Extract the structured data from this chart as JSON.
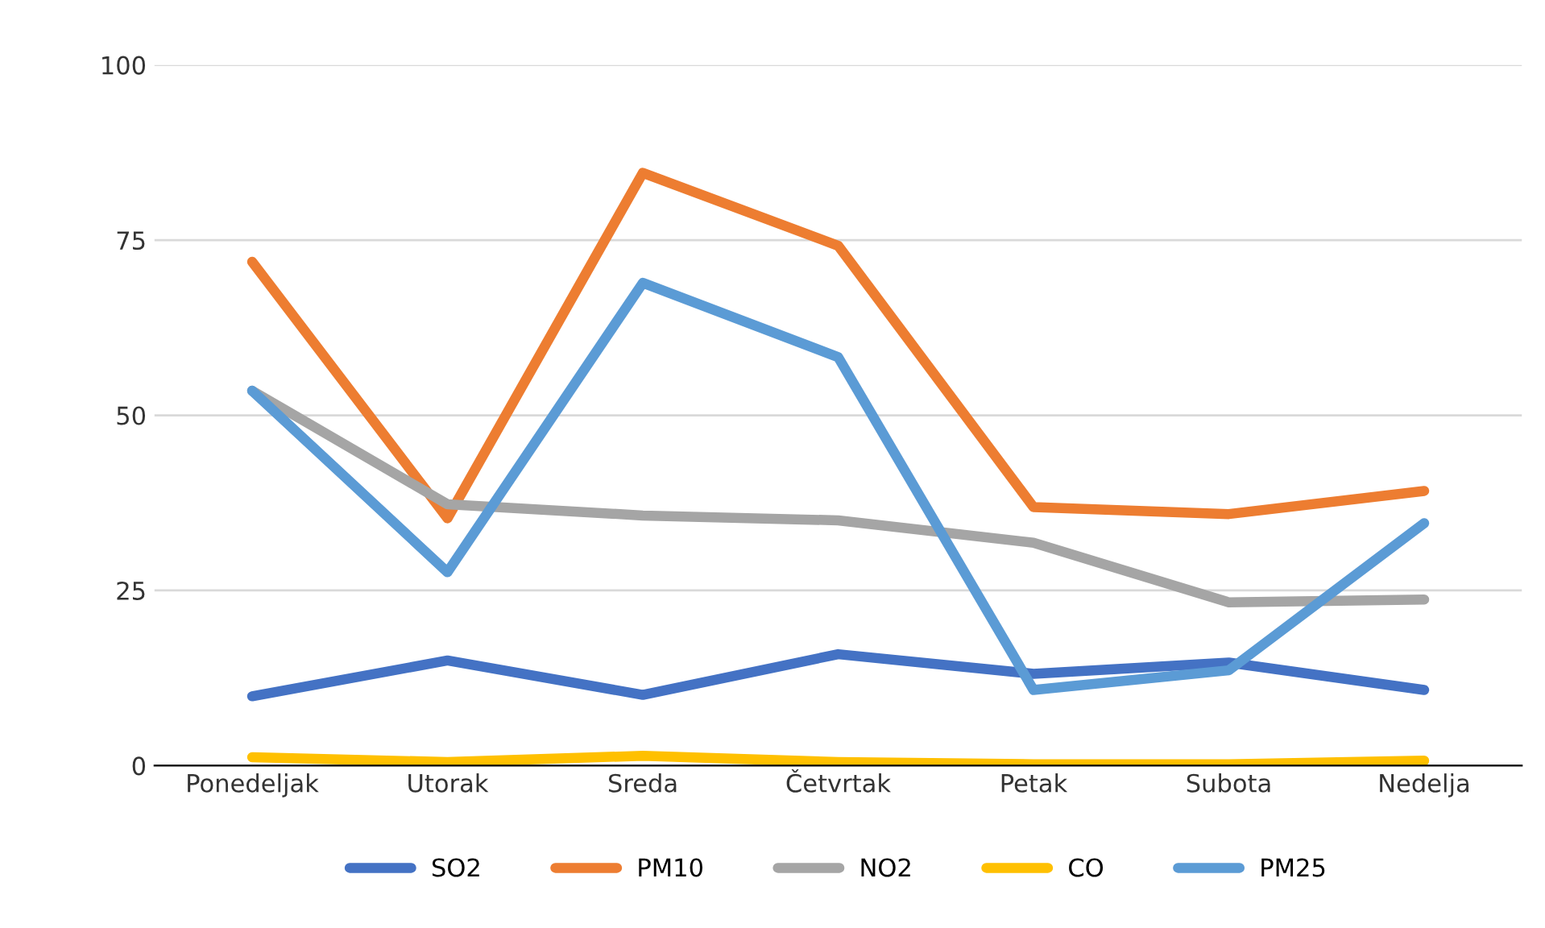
{
  "chart_data": {
    "type": "line",
    "categories": [
      "Ponedeljak",
      "Utorak",
      "Sreda",
      "Četvrtak",
      "Petak",
      "Subota",
      "Nedelja"
    ],
    "series": [
      {
        "name": "SO2",
        "color": "#4472c4",
        "values": [
          9.9,
          15,
          10.1,
          15.9,
          13.1,
          14.7,
          10.8
        ]
      },
      {
        "name": "PM10",
        "color": "#ed7d31",
        "values": [
          71.9,
          35.3,
          84.6,
          74.2,
          36.9,
          35.9,
          39.2
        ]
      },
      {
        "name": "NO2",
        "color": "#a5a5a5",
        "values": [
          53.5,
          37.3,
          35.7,
          35,
          31.8,
          23.3,
          23.7
        ]
      },
      {
        "name": "CO",
        "color": "#ffc000",
        "values": [
          1.2,
          0.5,
          1.4,
          0.5,
          0.2,
          0.2,
          0.7
        ]
      },
      {
        "name": "PM25",
        "color": "#5b9bd5",
        "values": [
          53.5,
          27.6,
          68.9,
          58.3,
          10.8,
          13.6,
          34.6
        ]
      }
    ],
    "ylim": [
      0,
      100
    ],
    "yticks": [
      0,
      25,
      50,
      75,
      100
    ],
    "grid": "y",
    "legend": "bottom",
    "marker": "none",
    "line_style": "solid"
  }
}
